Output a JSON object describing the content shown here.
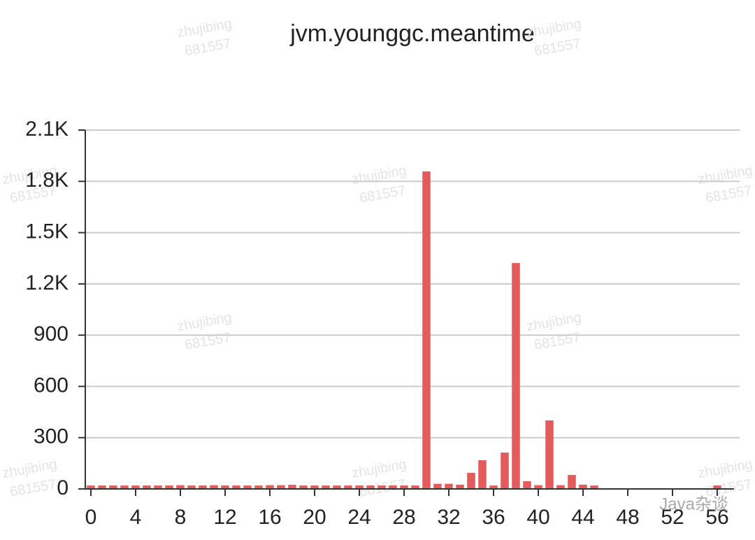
{
  "chart_data": {
    "type": "bar",
    "title": "jvm.younggc.meantime",
    "x": [
      0,
      1,
      2,
      3,
      4,
      5,
      6,
      7,
      8,
      9,
      10,
      11,
      12,
      13,
      14,
      15,
      16,
      17,
      18,
      19,
      20,
      21,
      22,
      23,
      24,
      25,
      26,
      27,
      28,
      29,
      30,
      31,
      32,
      33,
      34,
      35,
      36,
      37,
      38,
      39,
      40,
      41,
      42,
      43,
      44,
      45,
      46,
      47,
      48,
      49,
      50,
      51,
      52,
      53,
      54,
      55,
      56,
      57
    ],
    "values": [
      20,
      20,
      20,
      20,
      20,
      20,
      20,
      20,
      22,
      20,
      20,
      22,
      20,
      20,
      20,
      20,
      22,
      22,
      24,
      20,
      20,
      20,
      20,
      20,
      20,
      20,
      20,
      20,
      20,
      20,
      1858,
      30,
      30,
      25,
      94,
      168,
      20,
      213,
      1322,
      45,
      22,
      401,
      22,
      82,
      25,
      20,
      null,
      null,
      null,
      null,
      null,
      null,
      null,
      null,
      null,
      null,
      20,
      null
    ],
    "color": "#e45b5b",
    "xlim": [
      -0.5,
      57.5
    ],
    "xticks": [
      0,
      4,
      8,
      12,
      16,
      20,
      24,
      28,
      32,
      36,
      40,
      44,
      48,
      52,
      56
    ],
    "ylim": [
      0,
      2100
    ],
    "yticks": [
      0,
      300,
      600,
      900,
      {
        "value": 1200,
        "label": "1.2K"
      },
      {
        "value": 1500,
        "label": "1.5K"
      },
      {
        "value": 1800,
        "label": "1.8K"
      },
      {
        "value": 2100,
        "label": "2.1K"
      }
    ],
    "grid": true
  },
  "watermark": [
    "zhujibing",
    "681557"
  ],
  "footer": "Java杂谈"
}
